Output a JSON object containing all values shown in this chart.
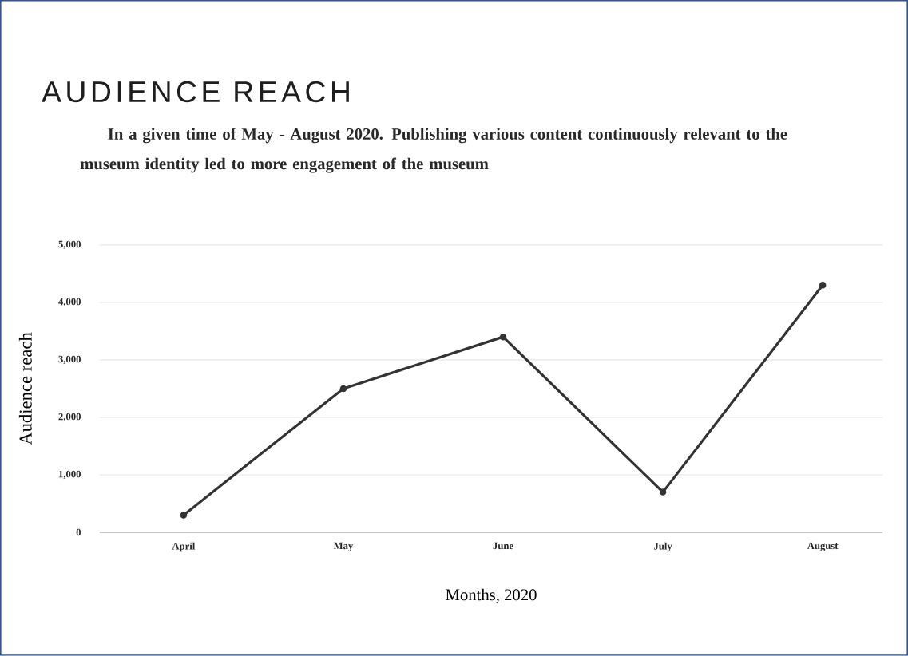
{
  "chart_data": {
    "type": "line",
    "title": "AUDIENCE REACH",
    "subtitle": "In a given time of May - August 2020. Publishing various content continuously relevant to the museum identity led to more engagement of the museum",
    "xlabel": "Months, 2020",
    "ylabel": "Audience reach",
    "categories": [
      "April",
      "May",
      "June",
      "July",
      "August"
    ],
    "values": [
      300,
      2500,
      3400,
      700,
      4300
    ],
    "color": "#333333",
    "ylim": [
      0,
      5000
    ],
    "yticks": [
      0,
      {
        "value": 1000,
        "label": "1,000"
      },
      {
        "value": 2000,
        "label": "2,000"
      },
      {
        "value": 3000,
        "label": "3,000"
      },
      {
        "value": 4000,
        "label": "4,000"
      },
      {
        "value": 5000,
        "label": "5,000"
      }
    ],
    "grid": "y",
    "marker": "circle",
    "line_style": "solid"
  }
}
